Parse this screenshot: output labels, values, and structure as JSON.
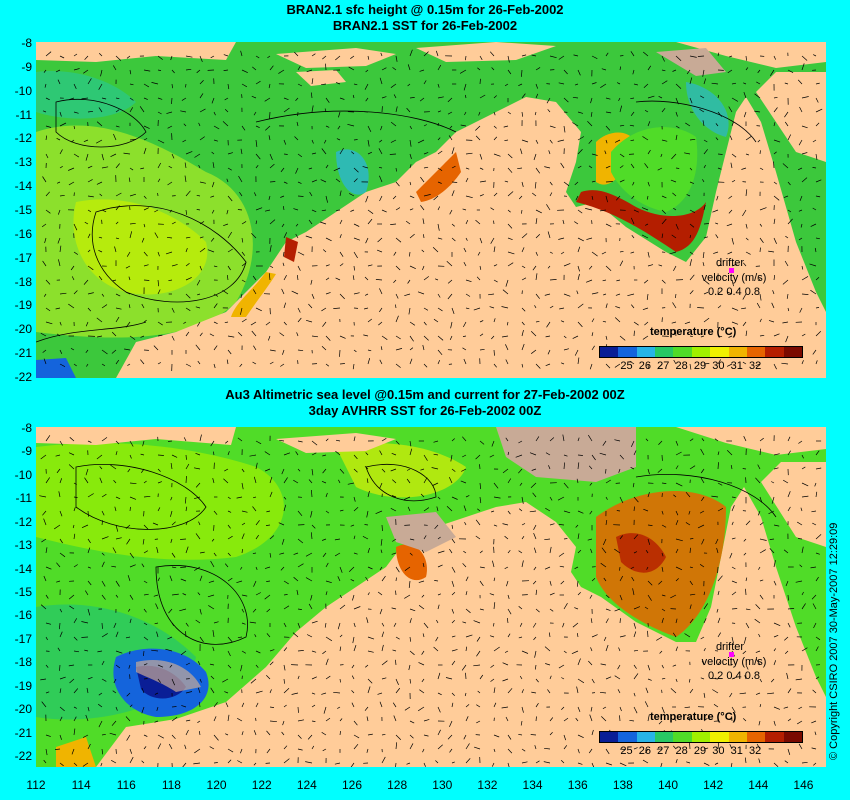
{
  "panel_top": {
    "title_line1": "BRAN2.1 sfc height @ 0.15m for 26-Feb-2002",
    "title_line2": "BRAN2.1 SST for 26-Feb-2002",
    "y_ticks": [
      "-8",
      "-9",
      "-10",
      "-11",
      "-12",
      "-13",
      "-14",
      "-15",
      "-16",
      "-17",
      "-18",
      "-19",
      "-20",
      "-21",
      "-22"
    ],
    "colorbar": {
      "title": "temperature (°C)",
      "ticks": [
        "25",
        "26",
        "27",
        "28",
        "29",
        "30",
        "31",
        "32"
      ],
      "colors": [
        "#0a1e96",
        "#1464dc",
        "#28b4e6",
        "#28c864",
        "#50dc28",
        "#a0f000",
        "#f0f000",
        "#f0b400",
        "#e66400",
        "#b41e00",
        "#7a0a00"
      ]
    },
    "legend": {
      "drifter": "drifter",
      "velocity": "velocity (m/s)",
      "scale": "0.2 0.4 0.8"
    }
  },
  "panel_bottom": {
    "title_line1": "Au3 Altimetric sea level  @0.15m and current for 27-Feb-2002 00Z",
    "title_line2": "3day AVHRR SST for 26-Feb-2002 00Z",
    "y_ticks": [
      "-8",
      "-9",
      "-10",
      "-11",
      "-12",
      "-13",
      "-14",
      "-15",
      "-16",
      "-17",
      "-18",
      "-19",
      "-20",
      "-21",
      "-22"
    ],
    "colorbar": {
      "title": "temperature (°C)",
      "ticks": [
        "25",
        "26",
        "27",
        "28",
        "29",
        "30",
        "31",
        "32"
      ],
      "colors": [
        "#0a1e96",
        "#1464dc",
        "#28b4e6",
        "#28c864",
        "#50dc28",
        "#a0f000",
        "#f0f000",
        "#f0b400",
        "#e66400",
        "#b41e00",
        "#7a0a00"
      ]
    },
    "legend": {
      "drifter": "drifter",
      "velocity": "velocity (m/s)",
      "scale": "0.2 0.4 0.8"
    }
  },
  "x_ticks": [
    "112",
    "114",
    "116",
    "118",
    "120",
    "122",
    "124",
    "126",
    "128",
    "130",
    "132",
    "134",
    "136",
    "138",
    "140",
    "142",
    "144",
    "146"
  ],
  "copyright": "© Copyright CSIRO 2007   30-May-2007 12:29:09",
  "colors": {
    "background": "#00ffff",
    "land": "#ffcc99",
    "missing": "#c8aa96",
    "ocean_green": "#3cc83c",
    "warm_orange": "#f08c28"
  }
}
